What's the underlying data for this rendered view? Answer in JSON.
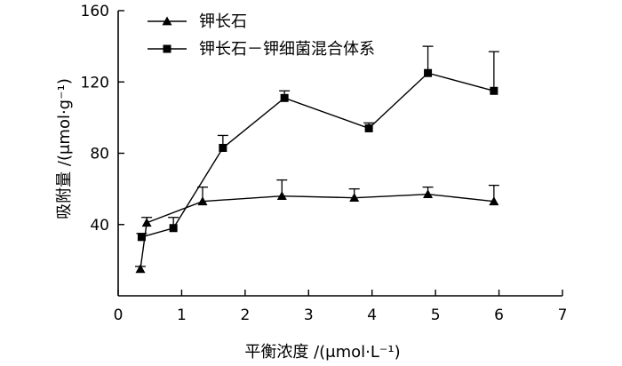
{
  "chart_data": {
    "type": "line",
    "title": "",
    "xlabel": "平衡浓度 /(μmol·L⁻¹)",
    "ylabel": "吸附量 /(μmol·g⁻¹)",
    "xlim": [
      0,
      7
    ],
    "ylim": [
      0,
      160
    ],
    "xticks": [
      0,
      1,
      2,
      3,
      4,
      5,
      6,
      7
    ],
    "yticks": [
      40,
      80,
      120,
      160
    ],
    "grid": false,
    "legend_position": "top-left",
    "series": [
      {
        "name": "钾长石",
        "marker": "triangle",
        "color": "#000000",
        "x": [
          0.35,
          0.45,
          1.33,
          2.58,
          3.72,
          4.88,
          5.92
        ],
        "y": [
          15,
          41,
          53,
          56,
          55,
          57,
          53
        ],
        "error_upper": [
          1.5,
          3,
          8,
          9,
          5,
          4,
          9
        ]
      },
      {
        "name": "钾长石－钾细菌混合体系",
        "marker": "square",
        "color": "#000000",
        "x": [
          0.37,
          0.87,
          1.65,
          2.62,
          3.95,
          4.88,
          5.92
        ],
        "y": [
          33,
          38,
          83,
          111,
          94,
          125,
          115
        ],
        "error_upper": [
          2,
          6,
          7,
          4,
          3,
          15,
          22
        ]
      }
    ]
  }
}
